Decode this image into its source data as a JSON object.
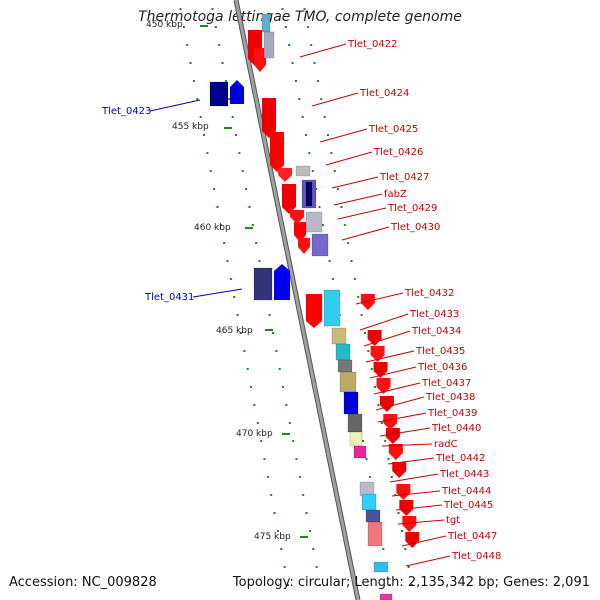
{
  "title": "Thermotoga lettingae TMO, complete genome",
  "footer": {
    "accession": "Accession: NC_009828",
    "topology": "Topology: circular; Length: 2,135,342 bp; Genes: 2,091"
  },
  "colors": {
    "forward_cds": "#ff0000",
    "reverse_cds": "#0000cc",
    "backbone": "#888888",
    "tick": "#008800"
  },
  "kbp_labels": [
    "450 kbp",
    "455 kbp",
    "460 kbp",
    "465 kbp",
    "470 kbp",
    "475 kbp"
  ],
  "genes": [
    {
      "label": "Tlet_0422",
      "strand": "reverse",
      "label_color": "#cc0000"
    },
    {
      "label": "Tlet_0423",
      "strand": "forward",
      "label_color": "#0000cc"
    },
    {
      "label": "Tlet_0424",
      "strand": "reverse",
      "label_color": "#cc0000"
    },
    {
      "label": "Tlet_0425",
      "strand": "reverse",
      "label_color": "#cc0000"
    },
    {
      "label": "Tlet_0426",
      "strand": "reverse",
      "label_color": "#cc0000"
    },
    {
      "label": "Tlet_0427",
      "strand": "reverse",
      "label_color": "#cc0000"
    },
    {
      "label": "fabZ",
      "strand": "reverse",
      "label_color": "#cc0000"
    },
    {
      "label": "Tlet_0429",
      "strand": "reverse",
      "label_color": "#cc0000"
    },
    {
      "label": "Tlet_0430",
      "strand": "reverse",
      "label_color": "#cc0000"
    },
    {
      "label": "Tlet_0431",
      "strand": "forward",
      "label_color": "#0000cc"
    },
    {
      "label": "Tlet_0432",
      "strand": "reverse",
      "label_color": "#cc0000"
    },
    {
      "label": "Tlet_0433",
      "strand": "reverse",
      "label_color": "#cc0000"
    },
    {
      "label": "Tlet_0434",
      "strand": "reverse",
      "label_color": "#cc0000"
    },
    {
      "label": "Tlet_0435",
      "strand": "reverse",
      "label_color": "#cc0000"
    },
    {
      "label": "Tlet_0436",
      "strand": "reverse",
      "label_color": "#cc0000"
    },
    {
      "label": "Tlet_0437",
      "strand": "reverse",
      "label_color": "#cc0000"
    },
    {
      "label": "Tlet_0438",
      "strand": "reverse",
      "label_color": "#cc0000"
    },
    {
      "label": "Tlet_0439",
      "strand": "reverse",
      "label_color": "#cc0000"
    },
    {
      "label": "Tlet_0440",
      "strand": "reverse",
      "label_color": "#cc0000"
    },
    {
      "label": "radC",
      "strand": "reverse",
      "label_color": "#cc0000"
    },
    {
      "label": "Tlet_0442",
      "strand": "reverse",
      "label_color": "#cc0000"
    },
    {
      "label": "Tlet_0443",
      "strand": "reverse",
      "label_color": "#cc0000"
    },
    {
      "label": "Tlet_0444",
      "strand": "reverse",
      "label_color": "#cc0000"
    },
    {
      "label": "Tlet_0445",
      "strand": "reverse",
      "label_color": "#cc0000"
    },
    {
      "label": "tgt",
      "strand": "reverse",
      "label_color": "#cc0000"
    },
    {
      "label": "Tlet_0447",
      "strand": "reverse",
      "label_color": "#cc0000"
    },
    {
      "label": "Tlet_0448",
      "strand": "reverse",
      "label_color": "#cc0000"
    }
  ]
}
